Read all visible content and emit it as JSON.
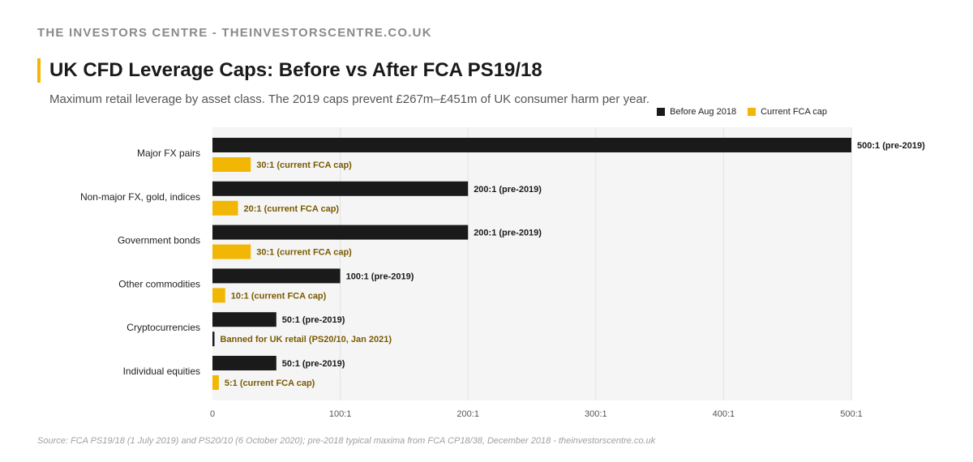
{
  "header": {
    "brand": "THE INVESTORS CENTRE - THEINVESTORSCENTRE.CO.UK",
    "title": "UK CFD Leverage Caps: Before vs After FCA PS19/18",
    "subtitle": "Maximum retail leverage by asset class. The 2019 caps prevent £267m–£451m of UK consumer harm per year."
  },
  "footer": {
    "source": "Source: FCA PS19/18 (1 July 2019) and PS20/10 (6 October 2020); pre-2018 typical maxima from FCA CP18/38, December 2018 - theinvestorscentre.co.uk"
  },
  "colors": {
    "before": "#1a1a1a",
    "current": "#f2b705",
    "current_label": "#7a5a00",
    "plot_bg": "#f5f5f5",
    "grid": "#e2e2e2"
  },
  "chart_data": {
    "type": "bar",
    "orientation": "horizontal",
    "categories": [
      "Major FX pairs",
      "Non-major FX, gold, indices",
      "Government bonds",
      "Other commodities",
      "Cryptocurrencies",
      "Individual equities"
    ],
    "series": [
      {
        "name": "Before Aug 2018",
        "values": [
          500,
          200,
          200,
          100,
          50,
          50
        ],
        "labels": [
          "500:1 (pre-2019)",
          "200:1 (pre-2019)",
          "200:1 (pre-2019)",
          "100:1 (pre-2019)",
          "50:1 (pre-2019)",
          "50:1 (pre-2019)"
        ]
      },
      {
        "name": "Current FCA cap",
        "values": [
          30,
          20,
          30,
          10,
          0,
          5
        ],
        "labels": [
          "30:1 (current FCA cap)",
          "20:1 (current FCA cap)",
          "30:1 (current FCA cap)",
          "10:1 (current FCA cap)",
          "Banned for UK retail (PS20/10, Jan 2021)",
          "5:1 (current FCA cap)"
        ]
      }
    ],
    "xlim": [
      0,
      500
    ],
    "xticks": [
      0,
      100,
      200,
      300,
      400,
      500
    ],
    "xtick_labels": [
      "0",
      "100:1",
      "200:1",
      "300:1",
      "400:1",
      "500:1"
    ],
    "grid": "vertical",
    "legend_position": "top-right"
  }
}
